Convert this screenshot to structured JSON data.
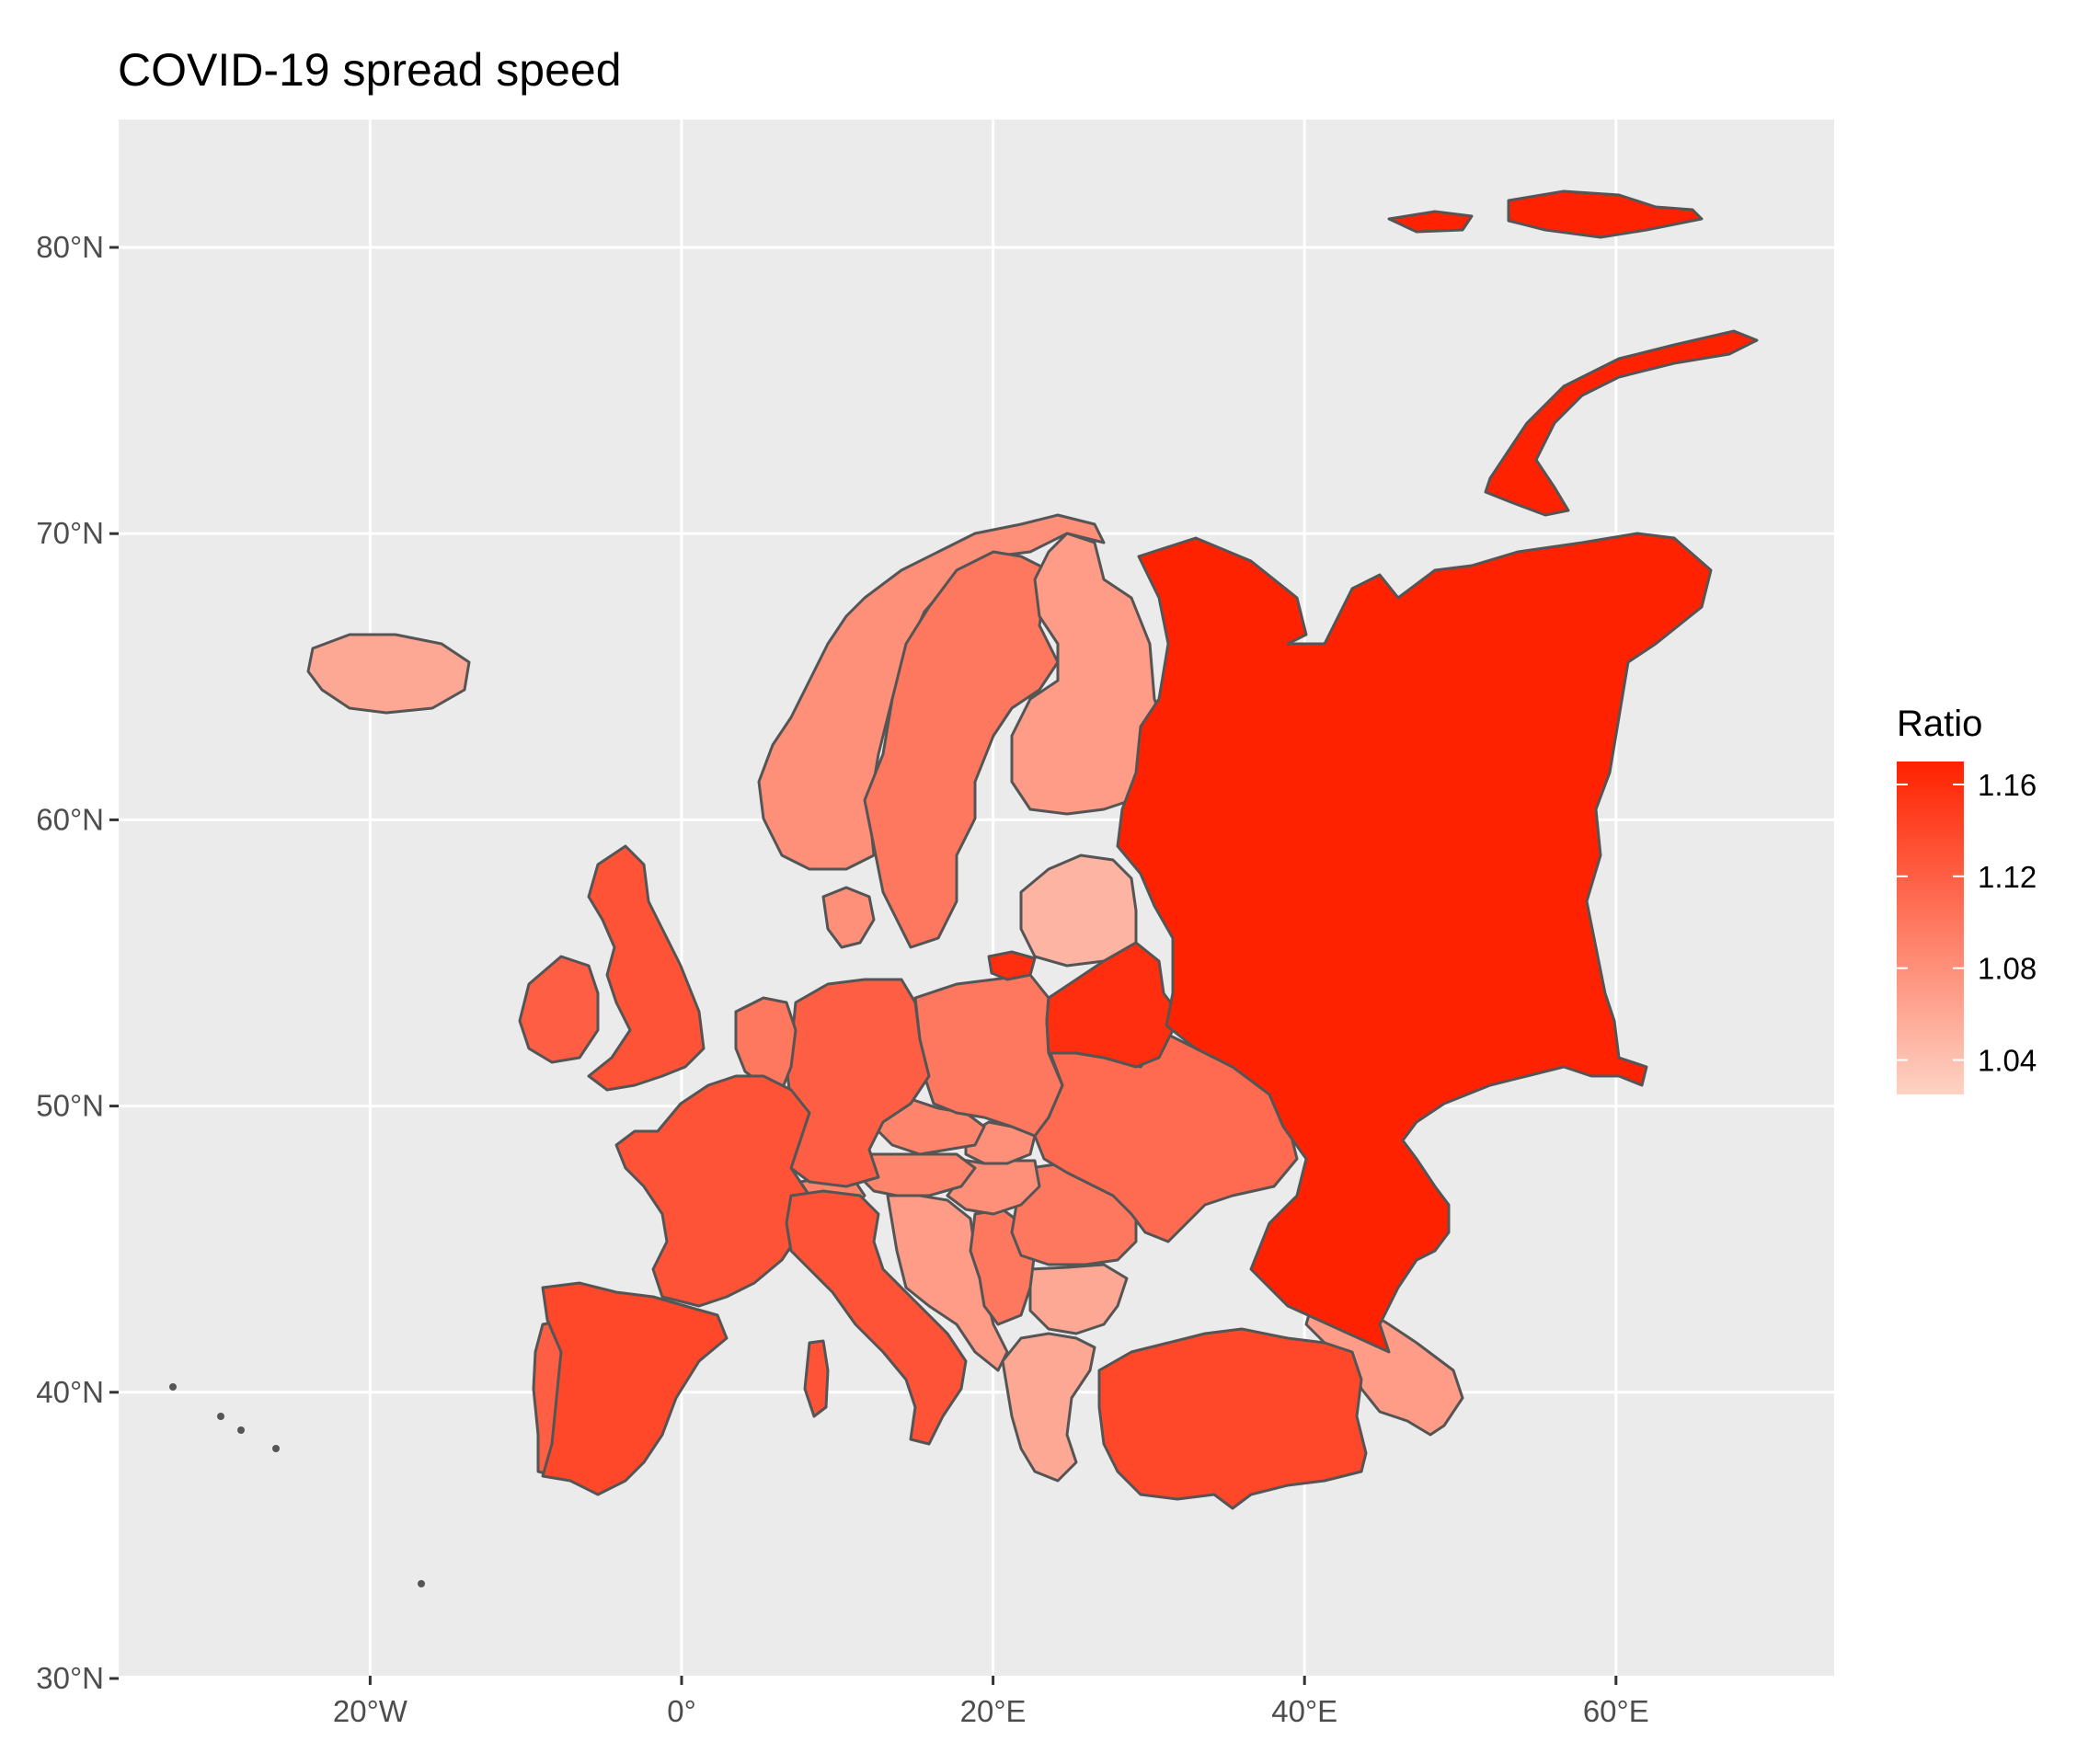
{
  "chart_data": {
    "type": "choropleth",
    "title": "COVID-19 spread speed",
    "x_ticks": [
      "20°W",
      "0°",
      "20°E",
      "40°E",
      "60°E"
    ],
    "y_ticks": [
      "30°N",
      "40°N",
      "50°N",
      "60°N",
      "70°N",
      "80°N"
    ],
    "legend": {
      "title": "Ratio",
      "labels": [
        "1.16",
        "1.12",
        "1.08",
        "1.04"
      ],
      "low_color": "#fdd3c4",
      "high_color": "#ff2200"
    },
    "regions": [
      {
        "name": "Russia",
        "value": 1.17
      },
      {
        "name": "Belarus",
        "value": 1.16
      },
      {
        "name": "Kaliningrad",
        "value": 1.16
      },
      {
        "name": "Turkey",
        "value": 1.14
      },
      {
        "name": "Spain",
        "value": 1.14
      },
      {
        "name": "United Kingdom",
        "value": 1.13
      },
      {
        "name": "France",
        "value": 1.13
      },
      {
        "name": "Italy",
        "value": 1.13
      },
      {
        "name": "Germany",
        "value": 1.12
      },
      {
        "name": "Ukraine",
        "value": 1.11
      },
      {
        "name": "Portugal",
        "value": 1.12
      },
      {
        "name": "Ireland",
        "value": 1.12
      },
      {
        "name": "Poland",
        "value": 1.1
      },
      {
        "name": "Sweden",
        "value": 1.1
      },
      {
        "name": "Romania",
        "value": 1.1
      },
      {
        "name": "Norway",
        "value": 1.08
      },
      {
        "name": "Finland",
        "value": 1.07
      },
      {
        "name": "Czech Republic",
        "value": 1.09
      },
      {
        "name": "Austria",
        "value": 1.09
      },
      {
        "name": "Switzerland",
        "value": 1.09
      },
      {
        "name": "Hungary",
        "value": 1.08
      },
      {
        "name": "Slovakia",
        "value": 1.08
      },
      {
        "name": "Serbia",
        "value": 1.1
      },
      {
        "name": "Bulgaria",
        "value": 1.06
      },
      {
        "name": "Greece",
        "value": 1.06
      },
      {
        "name": "Baltic states",
        "value": 1.05
      },
      {
        "name": "Iceland",
        "value": 1.06
      },
      {
        "name": "Caucasus",
        "value": 1.07
      },
      {
        "name": "Denmark",
        "value": 1.08
      },
      {
        "name": "Benelux",
        "value": 1.1
      },
      {
        "name": "Western Balkans",
        "value": 1.07
      }
    ]
  }
}
